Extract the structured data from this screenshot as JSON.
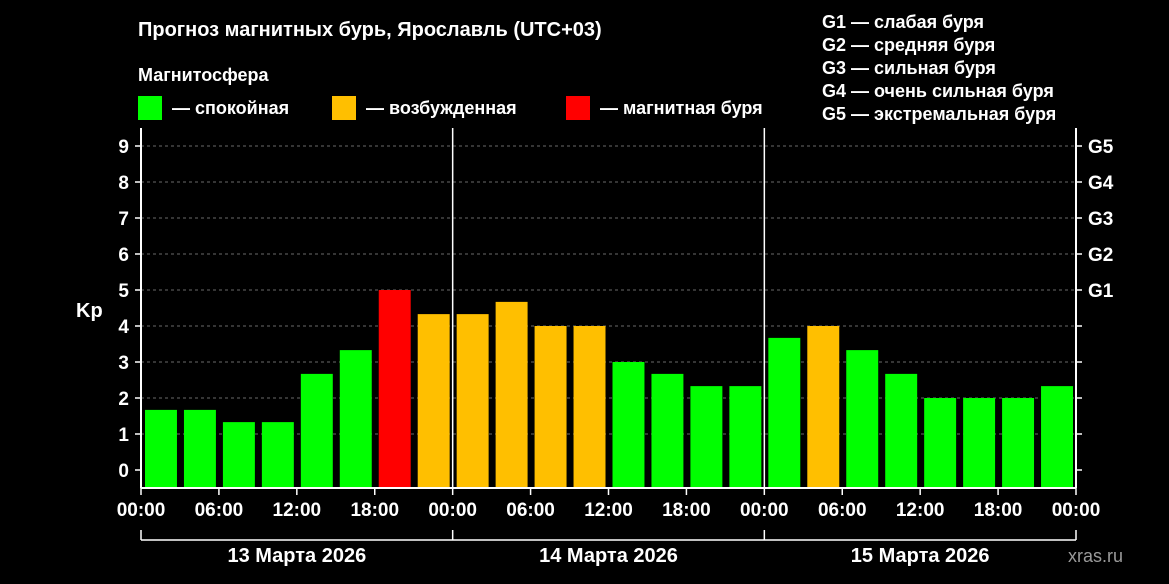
{
  "chart_data": {
    "type": "bar",
    "title": "Прогноз магнитных бурь, Ярославль (UTC+03)",
    "legend_title": "Магнитосфера",
    "legend": [
      {
        "label": "— спокойная",
        "color": "#00ff00"
      },
      {
        "label": "— возбужденная",
        "color": "#ffbf00"
      },
      {
        "label": "— магнитная буря",
        "color": "#ff0000"
      }
    ],
    "storm_scale": [
      "G1 — слабая буря",
      "G2 — средняя буря",
      "G3 — сильная буря",
      "G4 — очень сильная буря",
      "G5 — экстремальная буря"
    ],
    "ylabel": "Kp",
    "ylim": [
      0,
      9
    ],
    "yticks": [
      "0",
      "1",
      "2",
      "3",
      "4",
      "5",
      "6",
      "7",
      "8",
      "9"
    ],
    "right_ticks": [
      {
        "value": 5,
        "label": "G1"
      },
      {
        "value": 6,
        "label": "G2"
      },
      {
        "value": 7,
        "label": "G3"
      },
      {
        "value": 8,
        "label": "G4"
      },
      {
        "value": 9,
        "label": "G5"
      }
    ],
    "xticks": [
      "00:00",
      "06:00",
      "12:00",
      "18:00",
      "00:00",
      "06:00",
      "12:00",
      "18:00",
      "00:00",
      "06:00",
      "12:00",
      "18:00",
      "00:00"
    ],
    "days": [
      "13 Марта 2026",
      "14 Марта 2026",
      "15 Марта 2026"
    ],
    "values": [
      1.67,
      1.67,
      1.33,
      1.33,
      2.67,
      3.33,
      5.0,
      4.33,
      4.33,
      4.67,
      4.0,
      4.0,
      3.0,
      2.67,
      2.33,
      2.33,
      3.67,
      4.0,
      3.33,
      2.67,
      2.0,
      2.0,
      2.0,
      2.33
    ],
    "colors": {
      "quiet": "#00ff00",
      "active": "#ffbf00",
      "storm": "#ff0000"
    },
    "grid": true,
    "watermark": "xras.ru"
  }
}
